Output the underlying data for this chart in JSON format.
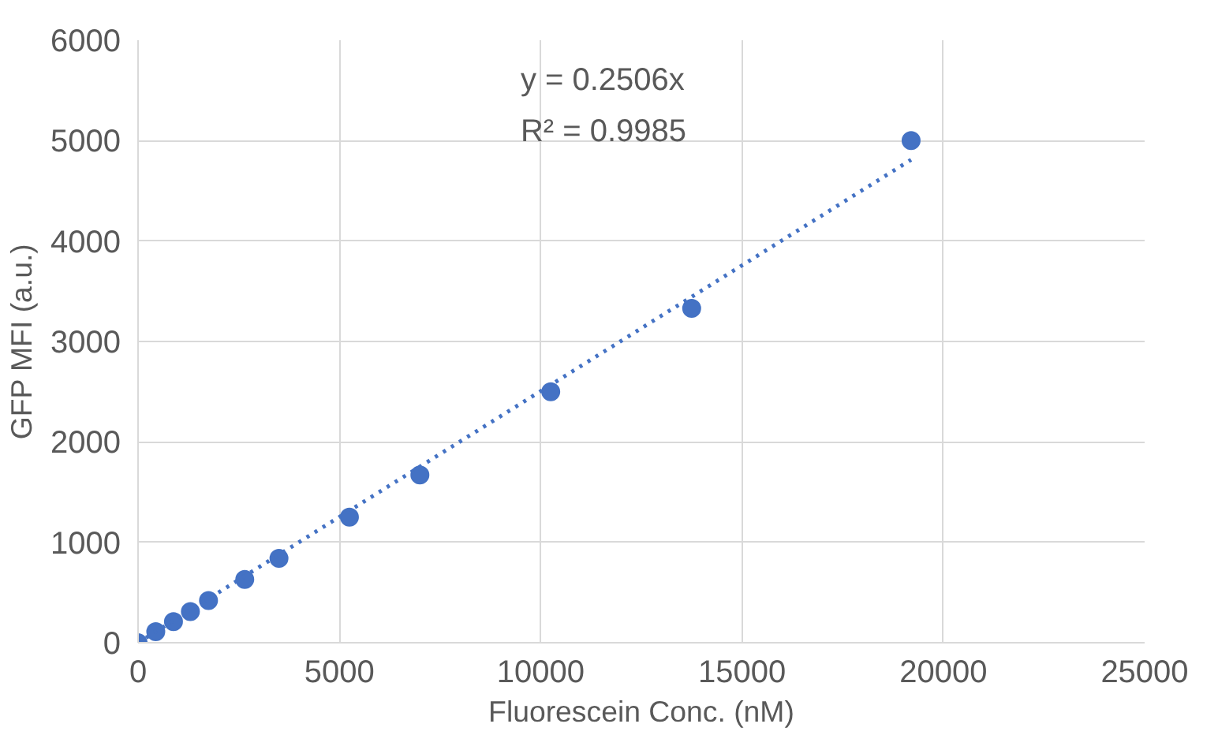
{
  "chart_data": {
    "type": "scatter",
    "xlabel": "Fluorescein Conc. (nM)",
    "ylabel": "GFP MFI (a.u.)",
    "xlim": [
      0,
      25000
    ],
    "ylim": [
      0,
      6000
    ],
    "xticks": [
      0,
      5000,
      10000,
      15000,
      20000,
      25000
    ],
    "yticks": [
      0,
      1000,
      2000,
      3000,
      4000,
      5000,
      6000
    ],
    "grid": true,
    "series": [
      {
        "color": "#4472c4",
        "marker": "circle",
        "x": [
          0,
          440,
          880,
          1300,
          1750,
          2650,
          3500,
          5250,
          7000,
          10250,
          13750,
          19200
        ],
        "values": [
          0,
          110,
          210,
          310,
          420,
          630,
          840,
          1250,
          1670,
          2500,
          3330,
          5000
        ]
      },
      {
        "type": "line",
        "color": "#4472c4",
        "line_style": "dotted",
        "x": [
          0,
          19200
        ],
        "values": [
          0,
          4810
        ]
      }
    ],
    "annotations": [
      "y = 0.2506x",
      "R² = 0.9985"
    ]
  }
}
